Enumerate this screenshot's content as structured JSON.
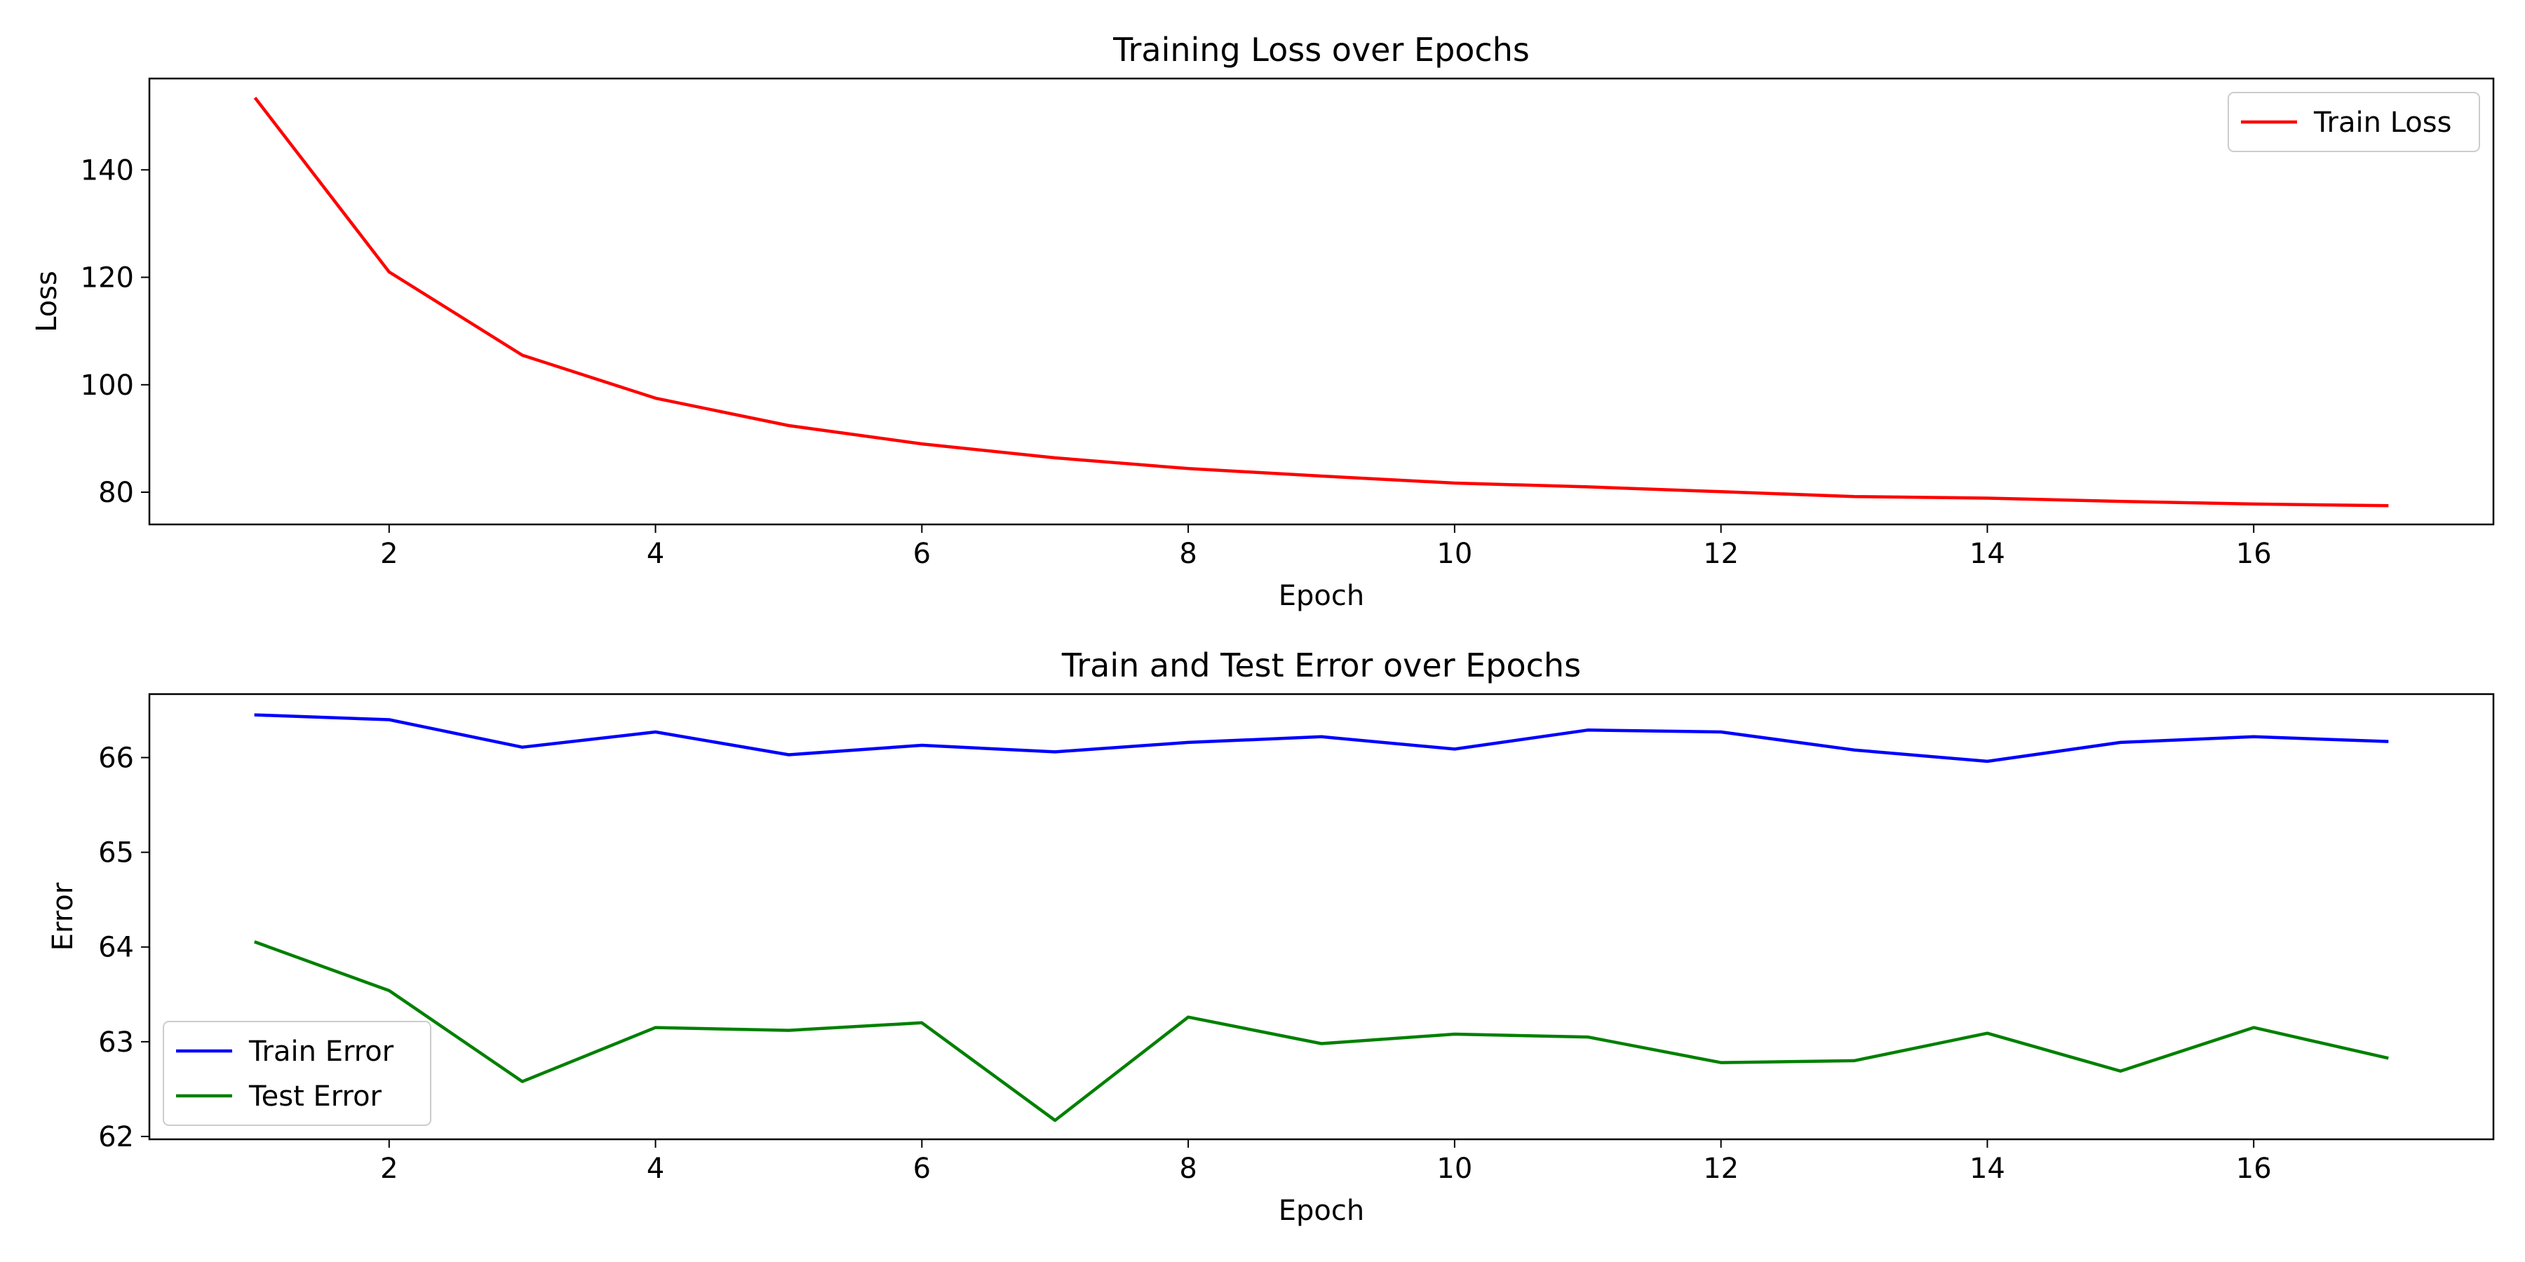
{
  "chart_data": [
    {
      "type": "line",
      "title": "Training Loss over Epochs",
      "xlabel": "Epoch",
      "ylabel": "Loss",
      "xlim": [
        0.2,
        17.8
      ],
      "ylim": [
        74,
        157
      ],
      "xticks": [
        2,
        4,
        6,
        8,
        10,
        12,
        14,
        16
      ],
      "yticks": [
        80,
        100,
        120,
        140
      ],
      "grid": false,
      "legend": "top-right",
      "x": [
        1,
        2,
        3,
        4,
        5,
        6,
        7,
        8,
        9,
        10,
        11,
        12,
        13,
        14,
        15,
        16,
        17
      ],
      "series": [
        {
          "name": "Train Loss",
          "color": "#ff0000",
          "values": [
            153.2,
            121.0,
            105.5,
            97.5,
            92.4,
            89.0,
            86.4,
            84.4,
            83.0,
            81.7,
            81.0,
            80.1,
            79.2,
            78.9,
            78.3,
            77.8,
            77.5
          ]
        }
      ]
    },
    {
      "type": "line",
      "title": "Train and Test Error over Epochs",
      "xlabel": "Epoch",
      "ylabel": "Error",
      "xlim": [
        0.2,
        17.8
      ],
      "ylim": [
        61.97,
        66.67
      ],
      "xticks": [
        2,
        4,
        6,
        8,
        10,
        12,
        14,
        16
      ],
      "yticks": [
        62,
        63,
        64,
        65,
        66
      ],
      "grid": false,
      "legend": "bottom-left",
      "x": [
        1,
        2,
        3,
        4,
        5,
        6,
        7,
        8,
        9,
        10,
        11,
        12,
        13,
        14,
        15,
        16,
        17
      ],
      "series": [
        {
          "name": "Train Error",
          "color": "#0000ff",
          "values": [
            66.45,
            66.4,
            66.11,
            66.27,
            66.03,
            66.13,
            66.06,
            66.16,
            66.22,
            66.09,
            66.29,
            66.27,
            66.08,
            65.96,
            66.16,
            66.22,
            66.17
          ]
        },
        {
          "name": "Test Error",
          "color": "#008000",
          "values": [
            64.05,
            63.54,
            62.58,
            63.15,
            63.12,
            63.2,
            62.17,
            63.26,
            62.98,
            63.08,
            63.05,
            62.78,
            62.8,
            63.09,
            62.69,
            63.15,
            62.83
          ]
        }
      ]
    }
  ]
}
